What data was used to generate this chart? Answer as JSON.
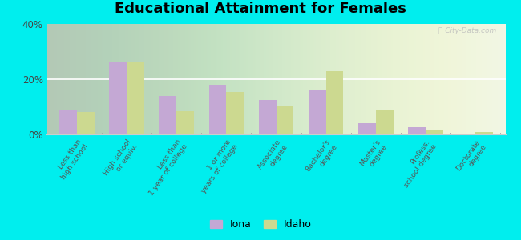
{
  "title": "Educational Attainment for Females",
  "categories": [
    "Less than\nhigh school",
    "High school\nor equiv.",
    "Less than\n1 year of college",
    "1 or more\nyears of college",
    "Associate\ndegree",
    "Bachelor's\ndegree",
    "Master's\ndegree",
    "Profess.\nschool degree",
    "Doctorate\ndegree"
  ],
  "iona_values": [
    9.0,
    26.5,
    14.0,
    18.0,
    12.5,
    16.0,
    4.0,
    2.5,
    0.0
  ],
  "idaho_values": [
    8.0,
    26.0,
    8.5,
    15.5,
    10.5,
    23.0,
    9.0,
    1.5,
    1.0
  ],
  "iona_color": "#c4a8d4",
  "idaho_color": "#ccd990",
  "background_color": "#00eeee",
  "ylim": [
    0,
    40
  ],
  "yticks": [
    0,
    20,
    40
  ],
  "ytick_labels": [
    "0%",
    "20%",
    "40%"
  ],
  "legend_labels": [
    "Iona",
    "Idaho"
  ],
  "bar_width": 0.35,
  "title_fontsize": 13,
  "tick_fontsize": 6.5,
  "legend_fontsize": 9,
  "watermark": "Ⓛ City-Data.com"
}
